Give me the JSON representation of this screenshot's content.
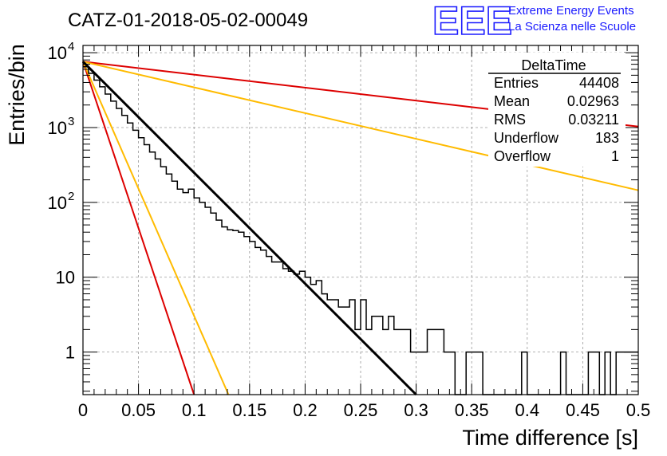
{
  "page": {
    "title": "CATZ-01-2018-05-02-00049",
    "logo": {
      "mark": "EEE",
      "line1": "Extreme Energy Events",
      "line2": "La Scienza nelle Scuole",
      "color": "#1a1aff"
    }
  },
  "stats": {
    "name": "DeltaTime",
    "rows": [
      {
        "label": "Entries",
        "value": "44408"
      },
      {
        "label": "Mean",
        "value": "0.02963"
      },
      {
        "label": "RMS",
        "value": "0.03211"
      },
      {
        "label": "Underflow",
        "value": "183"
      },
      {
        "label": "Overflow",
        "value": "1"
      }
    ]
  },
  "chart_data": {
    "type": "line",
    "title": "CATZ-01-2018-05-02-00049",
    "xlabel": "Time difference [s]",
    "ylabel": "Entries/bin",
    "xlim": [
      0,
      0.5
    ],
    "ylim": [
      0.27,
      12500
    ],
    "yscale": "log",
    "grid": true,
    "x_ticks": [
      {
        "v": 0,
        "label": "0"
      },
      {
        "v": 0.05,
        "label": "0.05"
      },
      {
        "v": 0.1,
        "label": "0.1"
      },
      {
        "v": 0.15,
        "label": "0.15"
      },
      {
        "v": 0.2,
        "label": "0.2"
      },
      {
        "v": 0.25,
        "label": "0.25"
      },
      {
        "v": 0.3,
        "label": "0.3"
      },
      {
        "v": 0.35,
        "label": "0.35"
      },
      {
        "v": 0.4,
        "label": "0.4"
      },
      {
        "v": 0.45,
        "label": "0.45"
      },
      {
        "v": 0.5,
        "label": "0.5"
      }
    ],
    "y_ticks": [
      {
        "v": 1,
        "base": "1",
        "exp": ""
      },
      {
        "v": 10,
        "base": "10",
        "exp": ""
      },
      {
        "v": 100,
        "base": "10",
        "exp": "2"
      },
      {
        "v": 1000,
        "base": "10",
        "exp": "3"
      },
      {
        "v": 10000,
        "base": "10",
        "exp": "4"
      }
    ],
    "histogram": {
      "bin_width": 0.005,
      "color": "#000000",
      "counts": [
        6500,
        5300,
        4300,
        3500,
        2800,
        2250,
        1800,
        1450,
        1150,
        920,
        730,
        590,
        470,
        380,
        300,
        240,
        192,
        150,
        135,
        150,
        115,
        100,
        86,
        72,
        58,
        47,
        43,
        42,
        40,
        35,
        30,
        25,
        23,
        19,
        16,
        16,
        13,
        12,
        11,
        12,
        10,
        8,
        9,
        6,
        5,
        5,
        4,
        4,
        5,
        2,
        5,
        2,
        3,
        3,
        2,
        3,
        2,
        2,
        2,
        1,
        1,
        1,
        2,
        2,
        2,
        1,
        1,
        0,
        0,
        1,
        1,
        1,
        0,
        0,
        0,
        0,
        0,
        0,
        0,
        1,
        0,
        0,
        0,
        0,
        0,
        0,
        1,
        0,
        0,
        0,
        0,
        1,
        1,
        0,
        1,
        0,
        1,
        1,
        1,
        1
      ]
    },
    "series": [
      {
        "kind": "fit",
        "color": "#000000",
        "x": [
          0,
          0.3
        ],
        "y": [
          7600,
          0.27
        ]
      },
      {
        "kind": "reference",
        "color": "#dd0000",
        "x": [
          0,
          0.5
        ],
        "y": [
          7600,
          1030
        ]
      },
      {
        "kind": "reference",
        "color": "#ffbb00",
        "x": [
          0,
          0.5
        ],
        "y": [
          7600,
          145
        ]
      },
      {
        "kind": "reference",
        "color": "#dd0000",
        "x": [
          0,
          0.1
        ],
        "y": [
          7600,
          0.27
        ]
      },
      {
        "kind": "reference",
        "color": "#ffbb00",
        "x": [
          0,
          0.131
        ],
        "y": [
          7600,
          0.27
        ]
      }
    ]
  }
}
